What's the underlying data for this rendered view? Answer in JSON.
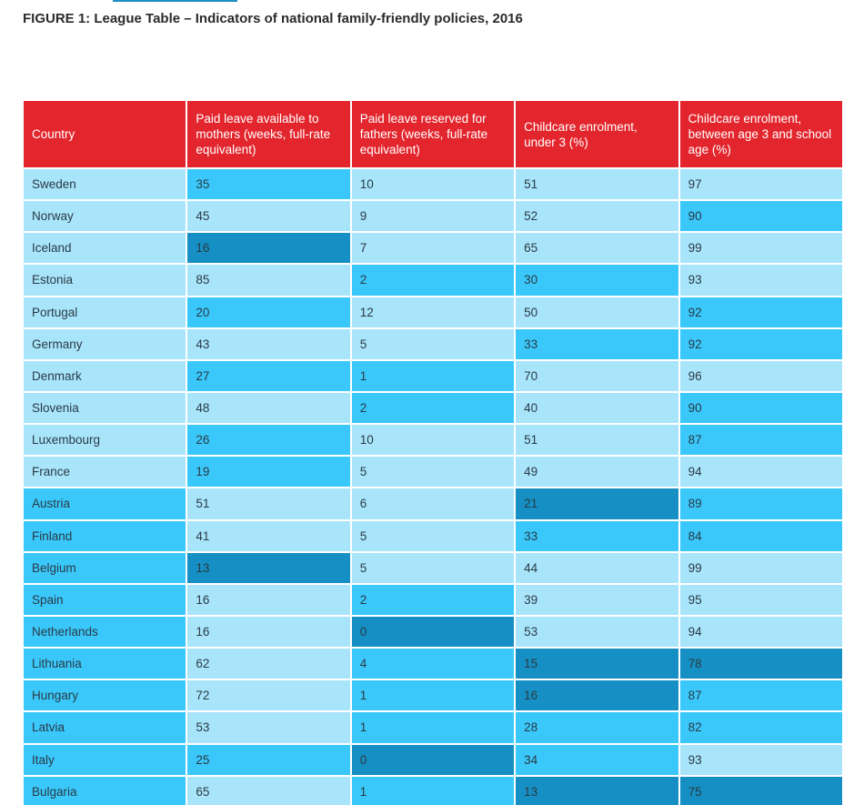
{
  "figure_title": "FIGURE 1: League Table – Indicators of national family-friendly policies, 2016",
  "colors": {
    "header": "#e3262d",
    "tier_1": "#a8e5fb",
    "tier_2": "#3ac8fb",
    "tier_3": "#1690c4",
    "top_rule": "#1a8fc4"
  },
  "table": {
    "headers": [
      "Country",
      "Paid leave available to mothers (weeks, full-rate equivalent)",
      "Paid leave reserved for fathers (weeks, full-rate equivalent)",
      "Childcare enrolment, under 3 (%)",
      "Childcare enrolment, between age 3 and school age (%)"
    ],
    "rows": [
      {
        "cells": [
          "Sweden",
          "35",
          "10",
          "51",
          "97"
        ],
        "tiers": [
          1,
          2,
          1,
          1,
          1
        ]
      },
      {
        "cells": [
          "Norway",
          "45",
          "9",
          "52",
          "90"
        ],
        "tiers": [
          1,
          1,
          1,
          1,
          2
        ]
      },
      {
        "cells": [
          "Iceland",
          "16",
          "7",
          "65",
          "99"
        ],
        "tiers": [
          1,
          3,
          1,
          1,
          1
        ]
      },
      {
        "cells": [
          "Estonia",
          "85",
          "2",
          "30",
          "93"
        ],
        "tiers": [
          1,
          1,
          2,
          2,
          1
        ]
      },
      {
        "cells": [
          "Portugal",
          "20",
          "12",
          "50",
          "92"
        ],
        "tiers": [
          1,
          2,
          1,
          1,
          2
        ]
      },
      {
        "cells": [
          "Germany",
          "43",
          "5",
          "33",
          "92"
        ],
        "tiers": [
          1,
          1,
          1,
          2,
          2
        ]
      },
      {
        "cells": [
          "Denmark",
          "27",
          "1",
          "70",
          "96"
        ],
        "tiers": [
          1,
          2,
          2,
          1,
          1
        ]
      },
      {
        "cells": [
          "Slovenia",
          "48",
          "2",
          "40",
          "90"
        ],
        "tiers": [
          1,
          1,
          2,
          1,
          2
        ]
      },
      {
        "cells": [
          "Luxembourg",
          "26",
          "10",
          "51",
          "87"
        ],
        "tiers": [
          1,
          2,
          1,
          1,
          2
        ]
      },
      {
        "cells": [
          "France",
          "19",
          "5",
          "49",
          "94"
        ],
        "tiers": [
          1,
          2,
          1,
          1,
          1
        ]
      },
      {
        "cells": [
          "Austria",
          "51",
          "6",
          "21",
          "89"
        ],
        "tiers": [
          2,
          1,
          1,
          3,
          2
        ]
      },
      {
        "cells": [
          "Finland",
          "41",
          "5",
          "33",
          "84"
        ],
        "tiers": [
          2,
          1,
          1,
          2,
          2
        ]
      },
      {
        "cells": [
          "Belgium",
          "13",
          "5",
          "44",
          "99"
        ],
        "tiers": [
          2,
          3,
          1,
          1,
          1
        ]
      },
      {
        "cells": [
          "Spain",
          "16",
          "2",
          "39",
          "95"
        ],
        "tiers": [
          2,
          1,
          2,
          1,
          1
        ]
      },
      {
        "cells": [
          "Netherlands",
          "16",
          "0",
          "53",
          "94"
        ],
        "tiers": [
          2,
          1,
          3,
          1,
          1
        ]
      },
      {
        "cells": [
          "Lithuania",
          "62",
          "4",
          "15",
          "78"
        ],
        "tiers": [
          2,
          1,
          2,
          3,
          3
        ]
      },
      {
        "cells": [
          "Hungary",
          "72",
          "1",
          "16",
          "87"
        ],
        "tiers": [
          2,
          1,
          2,
          3,
          2
        ]
      },
      {
        "cells": [
          "Latvia",
          "53",
          "1",
          "28",
          "82"
        ],
        "tiers": [
          2,
          1,
          2,
          2,
          2
        ]
      },
      {
        "cells": [
          "Italy",
          "25",
          "0",
          "34",
          "93"
        ],
        "tiers": [
          2,
          2,
          3,
          2,
          1
        ]
      },
      {
        "cells": [
          "Bulgaria",
          "65",
          "1",
          "13",
          "75"
        ],
        "tiers": [
          2,
          1,
          2,
          3,
          3
        ]
      }
    ]
  }
}
